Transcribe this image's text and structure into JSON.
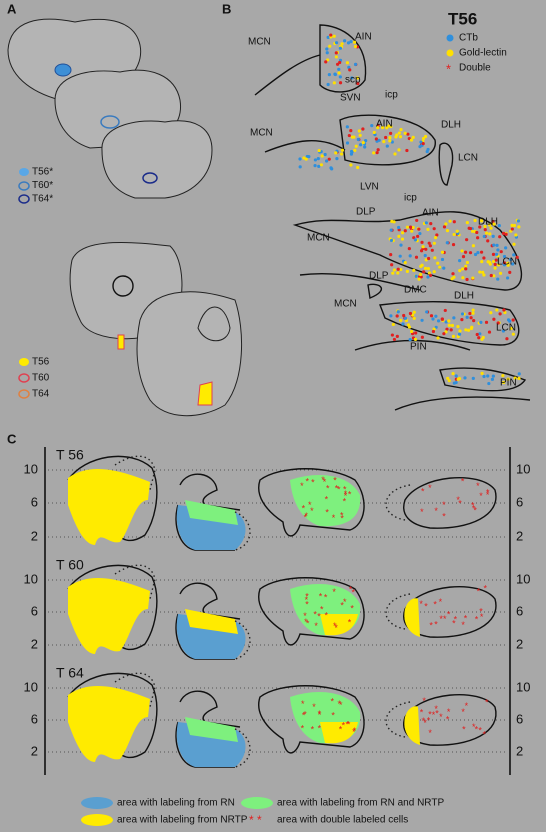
{
  "panel_a": {
    "label": "A",
    "legend_top": [
      "T56*",
      "T60*",
      "T64*"
    ],
    "legend_bottom": [
      "T56",
      "T60",
      "T64"
    ]
  },
  "panel_b": {
    "label": "B",
    "title": "T56",
    "legend": [
      "CTb",
      "Gold-lectin",
      "Double"
    ],
    "regions": [
      "MCN",
      "AIN",
      "scp",
      "SVN",
      "icp",
      "MCN",
      "AIN",
      "DLH",
      "LCN",
      "LVN",
      "icp",
      "DLP",
      "MCN",
      "AIN",
      "DLH",
      "LCN",
      "DLP",
      "MCN",
      "DMC",
      "DLH",
      "LCN",
      "PIN",
      "PIN"
    ]
  },
  "panel_c": {
    "label": "C",
    "rows": [
      {
        "title": "T 56",
        "ticks": [
          10,
          6,
          2
        ]
      },
      {
        "title": "T 60",
        "ticks": [
          10,
          6,
          2
        ]
      },
      {
        "title": "T 64",
        "ticks": [
          10,
          6,
          2
        ]
      }
    ],
    "legend": [
      "area with labeling from RN",
      "area with labeling from RN and NRTP",
      "area with labeling from NRTP",
      "area with double labeled cells"
    ]
  }
}
